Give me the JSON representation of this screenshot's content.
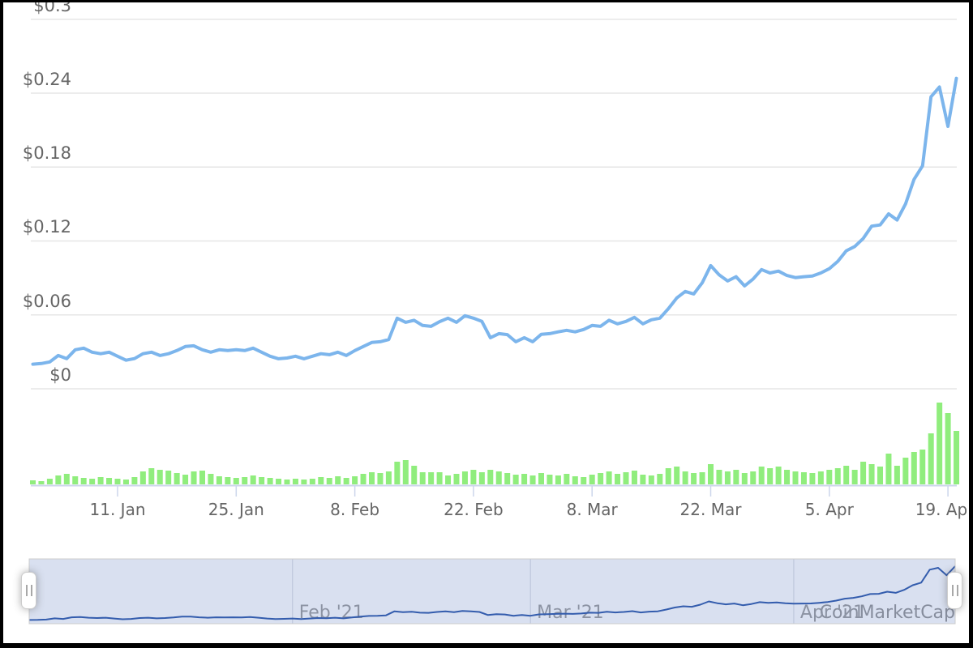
{
  "watermark": {
    "text": "CoinMarketCap",
    "color": "#919191"
  },
  "chart_data": {
    "type": "line",
    "title": "",
    "description": "Cryptocurrency price (USD) line chart with daily volume bars and range navigator, Jan 1 - Apr 20 2021",
    "grid": true,
    "legend_position": "none",
    "colors": {
      "price_line": "#7cb5ec",
      "volume_bar": "#90ed7d",
      "gridline": "#e6e6e6",
      "axis_line": "#ccd6eb",
      "tick_mark": "#ccd6eb",
      "axis_label": "#666666",
      "navigator_mask": "rgba(102,133,194,0.25)",
      "navigator_line": "#335cad",
      "navigator_gridline": "#b9c2d8",
      "navigator_outline": "#cccccc",
      "navigator_label": "#999999"
    },
    "y_axis": {
      "ylim": [
        0,
        0.3
      ],
      "unit": "USD",
      "ticks": [
        {
          "label": "$0.3",
          "value": 0.3
        },
        {
          "label": "$0.24",
          "value": 0.24
        },
        {
          "label": "$0.18",
          "value": 0.18
        },
        {
          "label": "$0.12",
          "value": 0.12
        },
        {
          "label": "$0.06",
          "value": 0.06
        },
        {
          "label": "$0",
          "value": 0.0
        }
      ]
    },
    "x_axis": {
      "span_days": 110,
      "ticks": [
        {
          "label": "11. Jan",
          "day": 10,
          "dx": 0
        },
        {
          "label": "25. Jan",
          "day": 24,
          "dx": 0
        },
        {
          "label": "8. Feb",
          "day": 38,
          "dx": 0
        },
        {
          "label": "22. Feb",
          "day": 52,
          "dx": 0
        },
        {
          "label": "8. Mar",
          "day": 66,
          "dx": 0
        },
        {
          "label": "22. Mar",
          "day": 80,
          "dx": 0
        },
        {
          "label": "5. Apr",
          "day": 94,
          "dx": 0
        },
        {
          "label": "19. Apr",
          "day": 108,
          "dx": -4
        }
      ]
    },
    "navigator": {
      "months": [
        {
          "label": "Feb '21",
          "day": 31
        },
        {
          "label": "Mar '21",
          "day": 59
        },
        {
          "label": "Apr '21",
          "day": 90
        }
      ],
      "selection": "full-range"
    },
    "series": [
      {
        "name": "price",
        "type": "line",
        "unit": "USD",
        "values": [
          0.02,
          0.0205,
          0.0218,
          0.027,
          0.0245,
          0.0317,
          0.033,
          0.0297,
          0.0285,
          0.0297,
          0.0264,
          0.0232,
          0.0245,
          0.0285,
          0.0297,
          0.027,
          0.0285,
          0.031,
          0.0343,
          0.0349,
          0.0317,
          0.0297,
          0.0317,
          0.031,
          0.0317,
          0.031,
          0.033,
          0.0297,
          0.0264,
          0.0244,
          0.025,
          0.0264,
          0.0244,
          0.0264,
          0.0285,
          0.0277,
          0.0297,
          0.027,
          0.031,
          0.0343,
          0.0376,
          0.0382,
          0.04,
          0.0573,
          0.054,
          0.0556,
          0.0514,
          0.0507,
          0.0545,
          0.0573,
          0.054,
          0.0593,
          0.0573,
          0.0547,
          0.0415,
          0.0448,
          0.044,
          0.0382,
          0.0415,
          0.0382,
          0.0442,
          0.0448,
          0.0462,
          0.0475,
          0.0462,
          0.0481,
          0.0514,
          0.0507,
          0.0556,
          0.0527,
          0.0547,
          0.058,
          0.0527,
          0.056,
          0.0573,
          0.065,
          0.0738,
          0.079,
          0.077,
          0.086,
          0.1,
          0.0925,
          0.0875,
          0.091,
          0.0835,
          0.089,
          0.0968,
          0.094,
          0.0955,
          0.092,
          0.0903,
          0.091,
          0.0915,
          0.094,
          0.0975,
          0.1035,
          0.112,
          0.1155,
          0.122,
          0.132,
          0.133,
          0.142,
          0.137,
          0.15,
          0.17,
          0.181,
          0.237,
          0.245,
          0.213,
          0.252
        ]
      },
      {
        "name": "volume",
        "type": "bar",
        "unit": "relative",
        "values": [
          5,
          4,
          7,
          11,
          13,
          10,
          8,
          7,
          9,
          8,
          7,
          6,
          9,
          16,
          20,
          18,
          17,
          14,
          12,
          16,
          17,
          13,
          10,
          9,
          8,
          9,
          11,
          9,
          8,
          7,
          6,
          7,
          6,
          7,
          9,
          8,
          10,
          8,
          10,
          13,
          15,
          14,
          16,
          28,
          30,
          23,
          15,
          15,
          15,
          11,
          13,
          16,
          18,
          15,
          18,
          16,
          14,
          12,
          13,
          11,
          14,
          12,
          11,
          13,
          10,
          9,
          12,
          14,
          16,
          13,
          15,
          17,
          12,
          11,
          13,
          20,
          22,
          16,
          14,
          15,
          25,
          18,
          16,
          18,
          14,
          16,
          22,
          20,
          22,
          18,
          16,
          15,
          14,
          16,
          18,
          20,
          23,
          18,
          28,
          25,
          22,
          38,
          23,
          33,
          40,
          43,
          63,
          101,
          88,
          66
        ]
      }
    ]
  }
}
